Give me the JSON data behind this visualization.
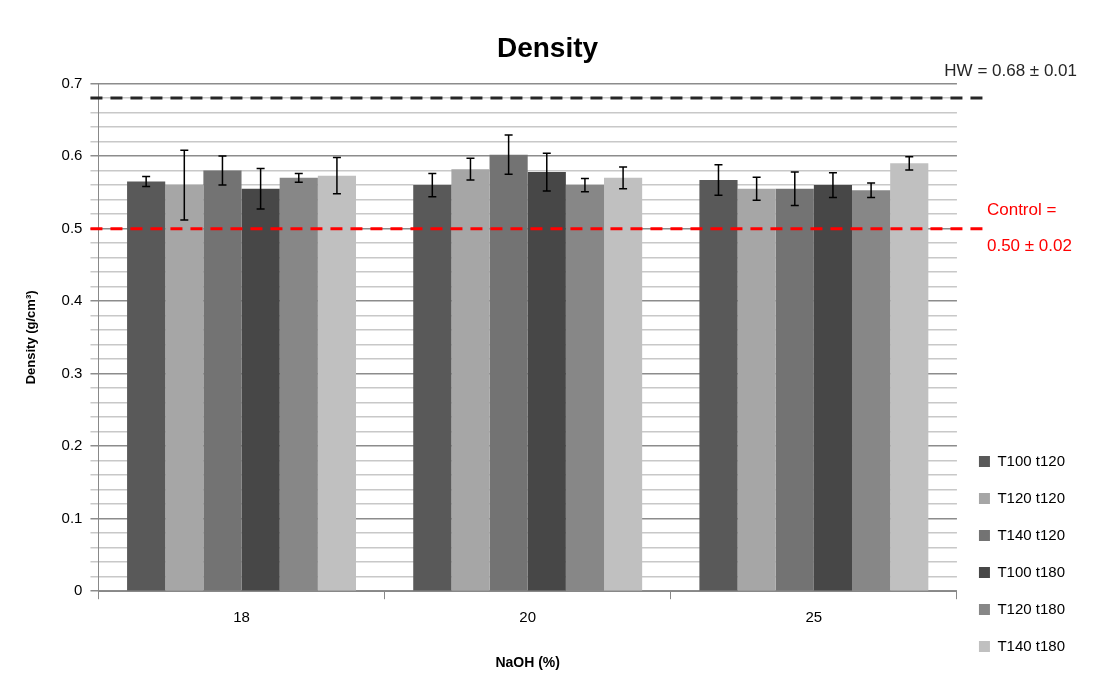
{
  "chart_data": {
    "type": "bar",
    "title": "Density",
    "xlabel": "NaOH (%)",
    "ylabel": "Density (g/cm³)",
    "categories": [
      "18",
      "20",
      "25"
    ],
    "series": [
      {
        "name": "T100 t120",
        "color": "#595959",
        "values": [
          0.565,
          0.56,
          0.567
        ],
        "errors": [
          0.007,
          0.016,
          0.021
        ]
      },
      {
        "name": "T120 t120",
        "color": "#a6a6a6",
        "values": [
          0.56,
          0.582,
          0.555
        ],
        "errors": [
          0.048,
          0.015,
          0.016
        ]
      },
      {
        "name": "T140 t120",
        "color": "#737373",
        "values": [
          0.58,
          0.602,
          0.555
        ],
        "errors": [
          0.02,
          0.027,
          0.023
        ]
      },
      {
        "name": "T100 t180",
        "color": "#474747",
        "values": [
          0.555,
          0.578,
          0.56
        ],
        "errors": [
          0.028,
          0.026,
          0.017
        ]
      },
      {
        "name": "T120 t180",
        "color": "#878787",
        "values": [
          0.57,
          0.56,
          0.553
        ],
        "errors": [
          0.006,
          0.009,
          0.01
        ]
      },
      {
        "name": "T140 t180",
        "color": "#c0c0c0",
        "values": [
          0.573,
          0.57,
          0.59
        ],
        "errors": [
          0.025,
          0.015,
          0.009
        ]
      }
    ],
    "ylim": [
      0,
      0.7
    ],
    "yticks": [
      0,
      {
        "value": 0.02,
        "label": null
      },
      {
        "value": 0.04,
        "label": null
      },
      {
        "value": 0.06,
        "label": null
      },
      {
        "value": 0.08,
        "label": null
      },
      0.1,
      {
        "value": 0.12,
        "label": null
      },
      {
        "value": 0.14,
        "label": null
      },
      {
        "value": 0.16,
        "label": null
      },
      {
        "value": 0.18,
        "label": null
      },
      0.2,
      {
        "value": 0.22,
        "label": null
      },
      {
        "value": 0.24,
        "label": null
      },
      {
        "value": 0.26,
        "label": null
      },
      {
        "value": 0.28,
        "label": null
      },
      0.3,
      {
        "value": 0.32,
        "label": null
      },
      {
        "value": 0.34,
        "label": null
      },
      {
        "value": 0.36,
        "label": null
      },
      {
        "value": 0.38,
        "label": null
      },
      0.4,
      {
        "value": 0.42,
        "label": null
      },
      {
        "value": 0.44,
        "label": null
      },
      {
        "value": 0.46,
        "label": null
      },
      {
        "value": 0.48,
        "label": null
      },
      0.5,
      {
        "value": 0.52,
        "label": null
      },
      {
        "value": 0.54,
        "label": null
      },
      {
        "value": 0.56,
        "label": null
      },
      {
        "value": 0.58,
        "label": null
      },
      0.6,
      {
        "value": 0.62,
        "label": null
      },
      {
        "value": 0.64,
        "label": null
      },
      {
        "value": 0.66,
        "label": null
      },
      {
        "value": 0.68,
        "label": null
      },
      0.7
    ],
    "ref_lines": [
      {
        "axis": "y",
        "value": 0.68,
        "label": "HW = 0.68 ± 0.01",
        "color": "#262626",
        "line_style": "dashed"
      },
      {
        "axis": "y",
        "value": 0.5,
        "label": "Control = 0.50 ± 0.02",
        "color": "#ff0000",
        "line_style": "dashed"
      }
    ],
    "grid": "y",
    "legend": "bottom right"
  }
}
